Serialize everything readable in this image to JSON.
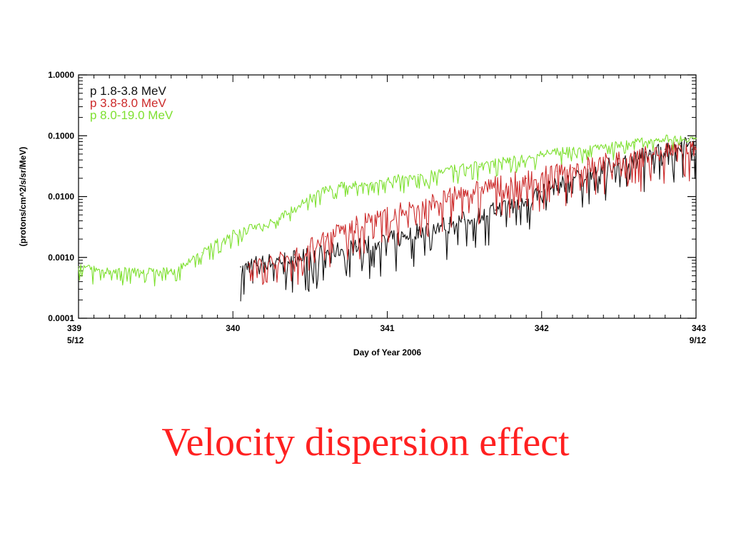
{
  "slide": {
    "caption": "Velocity dispersion effect",
    "caption_color": "#ff2020"
  },
  "chart_data": {
    "type": "line",
    "title": "",
    "xlabel": "Day of Year 2006",
    "ylabel": "(protons/cm^2/s/sr/MeV)",
    "xlim": [
      339,
      343
    ],
    "ylim": [
      0.0001,
      1.0
    ],
    "yscale": "log",
    "grid": false,
    "legend_position": "top-left",
    "x_ticks": [
      {
        "value": 339,
        "label": "339",
        "sublabel": "5/12"
      },
      {
        "value": 340,
        "label": "340",
        "sublabel": ""
      },
      {
        "value": 341,
        "label": "341",
        "sublabel": ""
      },
      {
        "value": 342,
        "label": "342",
        "sublabel": ""
      },
      {
        "value": 343,
        "label": "343",
        "sublabel": "9/12"
      }
    ],
    "y_ticks": [
      {
        "value": 1.0,
        "label": "1.0000"
      },
      {
        "value": 0.1,
        "label": "0.1000"
      },
      {
        "value": 0.01,
        "label": "0.0100"
      },
      {
        "value": 0.001,
        "label": "0.0010"
      },
      {
        "value": 0.0001,
        "label": "0.0001"
      }
    ],
    "series": [
      {
        "name": "p 1.8-3.8 MeV",
        "color": "#111111",
        "x": [
          340.05,
          340.15,
          340.3,
          340.4,
          340.6,
          340.8,
          340.95,
          341.1,
          341.2,
          341.3,
          341.4,
          341.5,
          341.6,
          341.7,
          341.8,
          341.9,
          342.0,
          342.1,
          342.2,
          342.3,
          342.4,
          342.5,
          342.6,
          342.7,
          342.8,
          342.9,
          342.95,
          343.0
        ],
        "y": [
          0.0007,
          0.0008,
          0.0009,
          0.001,
          0.0012,
          0.0015,
          0.0018,
          0.0022,
          0.0028,
          0.0032,
          0.0036,
          0.0042,
          0.005,
          0.006,
          0.0075,
          0.009,
          0.012,
          0.015,
          0.019,
          0.024,
          0.03,
          0.035,
          0.042,
          0.05,
          0.06,
          0.075,
          0.09,
          0.07
        ]
      },
      {
        "name": "p 3.8-8.0 MeV",
        "color": "#cc2a2a",
        "x": [
          340.1,
          340.2,
          340.3,
          340.4,
          340.5,
          340.6,
          340.7,
          340.8,
          340.9,
          341.0,
          341.1,
          341.2,
          341.3,
          341.4,
          341.5,
          341.6,
          341.7,
          341.8,
          341.9,
          342.0,
          342.1,
          342.2,
          342.3,
          342.4,
          342.5,
          342.6,
          342.7,
          342.8,
          342.9,
          343.0
        ],
        "y": [
          0.0007,
          0.0008,
          0.0009,
          0.0011,
          0.0015,
          0.0022,
          0.0028,
          0.0035,
          0.0042,
          0.005,
          0.006,
          0.007,
          0.0085,
          0.01,
          0.012,
          0.014,
          0.016,
          0.018,
          0.02,
          0.023,
          0.026,
          0.03,
          0.034,
          0.038,
          0.042,
          0.046,
          0.05,
          0.055,
          0.06,
          0.06
        ]
      },
      {
        "name": "p 8.0-19.0 MeV",
        "color": "#7ee030",
        "x": [
          339.0,
          339.2,
          339.4,
          339.6,
          339.7,
          339.8,
          339.9,
          340.0,
          340.1,
          340.2,
          340.3,
          340.4,
          340.5,
          340.6,
          340.7,
          340.8,
          340.9,
          341.0,
          341.2,
          341.4,
          341.6,
          341.8,
          342.0,
          342.2,
          342.4,
          342.6,
          342.8,
          343.0
        ],
        "y": [
          0.0007,
          0.0006,
          0.0006,
          0.0006,
          0.0008,
          0.0012,
          0.0018,
          0.0025,
          0.003,
          0.0035,
          0.0045,
          0.0065,
          0.01,
          0.013,
          0.015,
          0.016,
          0.017,
          0.019,
          0.023,
          0.028,
          0.034,
          0.041,
          0.05,
          0.06,
          0.068,
          0.078,
          0.09,
          0.09
        ]
      }
    ]
  }
}
